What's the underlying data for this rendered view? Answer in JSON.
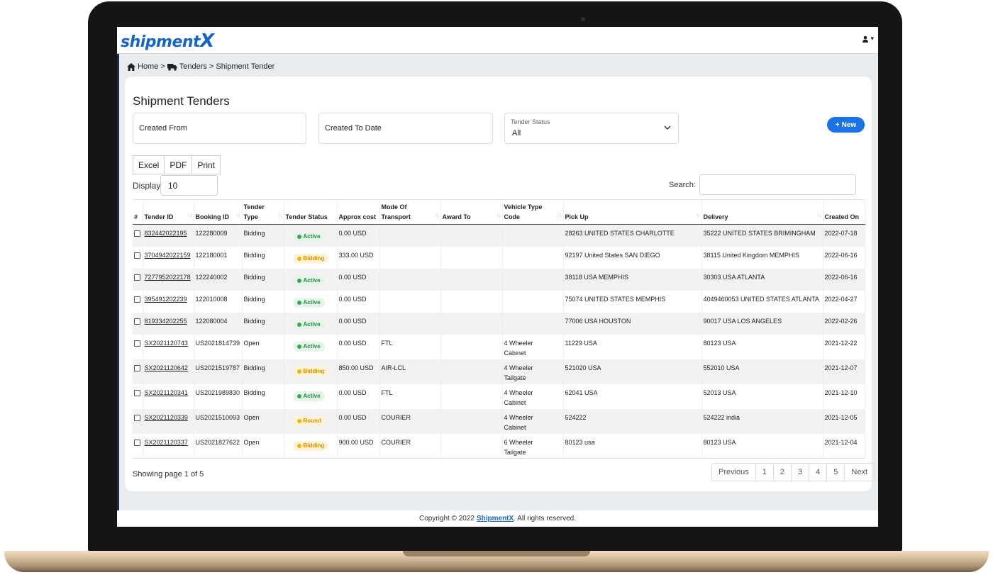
{
  "app": {
    "logo_main": "shipment",
    "logo_x": "X"
  },
  "navbar": {
    "user_icon": "user-icon",
    "caret": "▾"
  },
  "breadcrumb": {
    "home_icon": "home-icon",
    "home": "Home",
    "sep": ">",
    "truck_icon": "truck-icon",
    "tenders": "Tenders",
    "current": "Shipment Tender"
  },
  "page": {
    "title": "Shipment Tenders"
  },
  "filters": {
    "created_from": "Created From",
    "created_to": "Created To Date",
    "status_label": "Tender Status",
    "status_value": "All"
  },
  "new_button": {
    "icon": "+",
    "label": "New"
  },
  "export": {
    "excel": "Excel",
    "pdf": "PDF",
    "print": "Print"
  },
  "display": {
    "label": "Display",
    "value": "10"
  },
  "search": {
    "label": "Search:",
    "value": ""
  },
  "table": {
    "headers": {
      "hash": "#",
      "tender_id": "Tender ID",
      "booking_id": "Booking ID",
      "tender_type_1": "Tender",
      "tender_type_2": "Type",
      "tender_status": "Tender Status",
      "approx_cost": "Approx cost",
      "mode_1": "Mode Of",
      "mode_2": "Transport",
      "award_to": "Award To",
      "vehicle_1": "Vehicle Type",
      "vehicle_2": "Code",
      "pick_up": "Pick Up",
      "delivery": "Delivery",
      "created_on": "Created On"
    },
    "sort_icon": "↑↓",
    "rows": [
      {
        "tender_id": "832442022195",
        "booking_id": "122280009",
        "type": "Bidding",
        "status": "Active",
        "cost": "0.00 USD",
        "mode": "",
        "award": "",
        "vehicle_1": "",
        "vehicle_2": "",
        "pickup": "28263 UNITED STATES CHARLOTTE",
        "delivery": "35222 UNITED STATES BRIMINGHAM",
        "created": "2022-07-18"
      },
      {
        "tender_id": "3704942022159",
        "booking_id": "122180001",
        "type": "Bidding",
        "status": "Bidding",
        "cost": "333.00 USD",
        "mode": "",
        "award": "",
        "vehicle_1": "",
        "vehicle_2": "",
        "pickup": "92197 United States SAN DIEGO",
        "delivery": "38115 United Kingdom MEMPHIS",
        "created": "2022-06-16"
      },
      {
        "tender_id": "7277952022178",
        "booking_id": "122240002",
        "type": "Bidding",
        "status": "Active",
        "cost": "0.00 USD",
        "mode": "",
        "award": "",
        "vehicle_1": "",
        "vehicle_2": "",
        "pickup": "38118 USA MEMPHIS",
        "delivery": "30303 USA ATLANTA",
        "created": "2022-06-16"
      },
      {
        "tender_id": "395491202239",
        "booking_id": "122010008",
        "type": "Bidding",
        "status": "Active",
        "cost": "0.00 USD",
        "mode": "",
        "award": "",
        "vehicle_1": "",
        "vehicle_2": "",
        "pickup": "75074 UNITED STATES MEMPHIS",
        "delivery": "4049460053 UNITED STATES ATLANTA",
        "created": "2022-04-27"
      },
      {
        "tender_id": "819334202255",
        "booking_id": "122080004",
        "type": "Bidding",
        "status": "Active",
        "cost": "0.00 USD",
        "mode": "",
        "award": "",
        "vehicle_1": "",
        "vehicle_2": "",
        "pickup": "77006 USA HOUSTON",
        "delivery": "90017 USA LOS ANGELES",
        "created": "2022-02-26"
      },
      {
        "tender_id": "SX2021120743",
        "booking_id": "US2021814739",
        "type": "Open",
        "status": "Active",
        "cost": "0.00 USD",
        "mode": "FTL",
        "award": "",
        "vehicle_1": "4 Wheeler",
        "vehicle_2": "Cabinet",
        "pickup": "11229 USA",
        "delivery": "80123 USA",
        "created": "2021-12-22"
      },
      {
        "tender_id": "SX2021120642",
        "booking_id": "US2021519787",
        "type": "Bidding",
        "status": "Bidding",
        "cost": "850.00 USD",
        "mode": "AIR-LCL",
        "award": "",
        "vehicle_1": "4 Wheeler",
        "vehicle_2": "Tailgate",
        "pickup": "521020 USA",
        "delivery": "552010 USA",
        "created": "2021-12-07"
      },
      {
        "tender_id": "SX2021120341",
        "booking_id": "US2021989830",
        "type": "Bidding",
        "status": "Active",
        "cost": "0.00 USD",
        "mode": "FTL",
        "award": "",
        "vehicle_1": "4 Wheeler",
        "vehicle_2": "Cabinet",
        "pickup": "62041 USA",
        "delivery": "52013 USA",
        "created": "2021-12-10"
      },
      {
        "tender_id": "SX2021120339",
        "booking_id": "US2021510093",
        "type": "Open",
        "status": "Round",
        "cost": "0.00 USD",
        "mode": "COURIER",
        "award": "",
        "vehicle_1": "4 Wheeler",
        "vehicle_2": "Cabinet",
        "pickup": "524222",
        "delivery": "524222 india",
        "created": "2021-12-05"
      },
      {
        "tender_id": "SX2021120337",
        "booking_id": "US2021827622",
        "type": "Open",
        "status": "Bidding",
        "cost": "900.00 USD",
        "mode": "COURIER",
        "award": "",
        "vehicle_1": "6 Wheeler",
        "vehicle_2": "Tailgate",
        "pickup": "80123 usa",
        "delivery": "80123 USA",
        "created": "2021-12-04"
      }
    ]
  },
  "pagination": {
    "showing": "Showing page 1 of 5",
    "previous": "Previous",
    "pages": [
      "1",
      "2",
      "3",
      "4",
      "5"
    ],
    "next": "Next"
  },
  "footer": {
    "prefix": "Copyright © 2022",
    "brand": "ShipmentX",
    "suffix": ". All rights reserved."
  },
  "colors": {
    "primary": "#1a73e8",
    "active": "#34a853",
    "bidding": "#f5b400",
    "sidebar": "#1b2a4a"
  }
}
